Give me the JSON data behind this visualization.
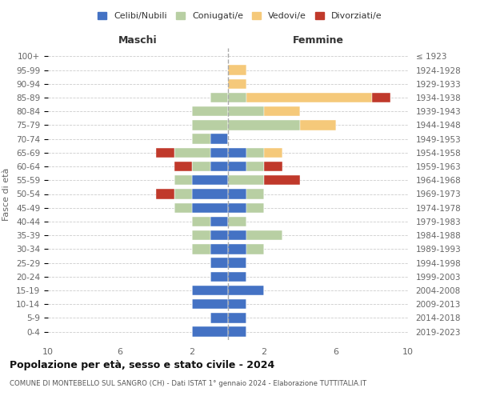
{
  "age_groups": [
    "100+",
    "95-99",
    "90-94",
    "85-89",
    "80-84",
    "75-79",
    "70-74",
    "65-69",
    "60-64",
    "55-59",
    "50-54",
    "45-49",
    "40-44",
    "35-39",
    "30-34",
    "25-29",
    "20-24",
    "15-19",
    "10-14",
    "5-9",
    "0-4"
  ],
  "birth_years": [
    "≤ 1923",
    "1924-1928",
    "1929-1933",
    "1934-1938",
    "1939-1943",
    "1944-1948",
    "1949-1953",
    "1954-1958",
    "1959-1963",
    "1964-1968",
    "1969-1973",
    "1974-1978",
    "1979-1983",
    "1984-1988",
    "1989-1993",
    "1994-1998",
    "1999-2003",
    "2004-2008",
    "2009-2013",
    "2014-2018",
    "2019-2023"
  ],
  "colors": {
    "celibi": "#4472C4",
    "coniugati": "#b8cfa3",
    "vedovi": "#f5c97a",
    "divorziati": "#c0392b"
  },
  "maschi": {
    "celibi": [
      0,
      0,
      0,
      0,
      0,
      0,
      1,
      1,
      1,
      2,
      2,
      2,
      1,
      1,
      1,
      1,
      1,
      2,
      2,
      1,
      2
    ],
    "coniugati": [
      0,
      0,
      0,
      1,
      2,
      2,
      1,
      2,
      1,
      1,
      1,
      1,
      1,
      1,
      1,
      0,
      0,
      0,
      0,
      0,
      0
    ],
    "vedovi": [
      0,
      0,
      0,
      0,
      0,
      0,
      0,
      0,
      0,
      0,
      0,
      0,
      0,
      0,
      0,
      0,
      0,
      0,
      0,
      0,
      0
    ],
    "divorziati": [
      0,
      0,
      0,
      0,
      0,
      0,
      0,
      1,
      1,
      0,
      1,
      0,
      0,
      0,
      0,
      0,
      0,
      0,
      0,
      0,
      0
    ]
  },
  "femmine": {
    "celibi": [
      0,
      0,
      0,
      0,
      0,
      0,
      0,
      1,
      1,
      0,
      1,
      1,
      0,
      1,
      1,
      1,
      1,
      2,
      1,
      1,
      1
    ],
    "coniugati": [
      0,
      0,
      0,
      1,
      2,
      4,
      0,
      1,
      1,
      2,
      1,
      1,
      1,
      2,
      1,
      0,
      0,
      0,
      0,
      0,
      0
    ],
    "vedovi": [
      0,
      1,
      1,
      7,
      2,
      2,
      0,
      1,
      0,
      0,
      0,
      0,
      0,
      0,
      0,
      0,
      0,
      0,
      0,
      0,
      0
    ],
    "divorziati": [
      0,
      0,
      0,
      1,
      0,
      0,
      0,
      0,
      1,
      2,
      0,
      0,
      0,
      0,
      0,
      0,
      0,
      0,
      0,
      0,
      0
    ]
  },
  "xlim": 10,
  "title": "Popolazione per età, sesso e stato civile - 2024",
  "subtitle": "COMUNE DI MONTEBELLO SUL SANGRO (CH) - Dati ISTAT 1° gennaio 2024 - Elaborazione TUTTITALIA.IT",
  "ylabel_left": "Fasce di età",
  "xlabel_maschi": "Maschi",
  "xlabel_femmine": "Femmine",
  "legend_labels": [
    "Celibi/Nubili",
    "Coniugati/e",
    "Vedovi/e",
    "Divorziati/e"
  ],
  "background_color": "#ffffff",
  "grid_color": "#cccccc"
}
